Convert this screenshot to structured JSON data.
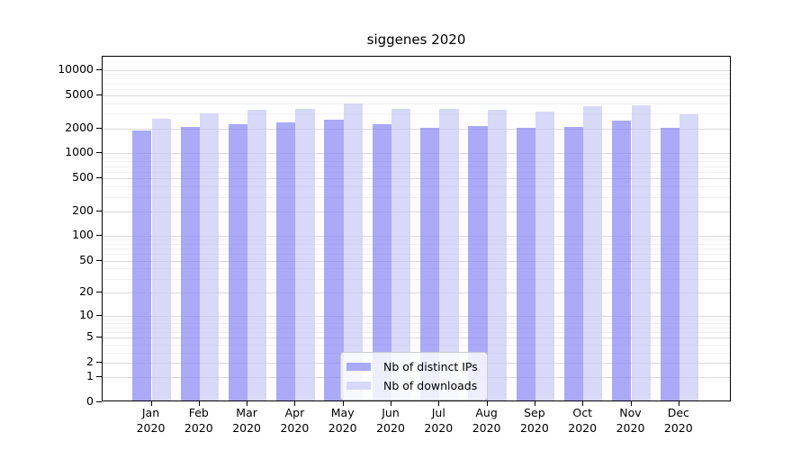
{
  "title": "siggenes 2020",
  "legend": {
    "items": [
      {
        "label": "Nb of distinct IPs",
        "color": "#aaaaf8"
      },
      {
        "label": "Nb of downloads",
        "color": "#d8d8f8"
      }
    ]
  },
  "colors": {
    "major_grid": "#dcdcdc",
    "minor_grid": "#f1f1f1",
    "axis": "#000000"
  },
  "chart_data": {
    "type": "bar",
    "title": "siggenes 2020",
    "categories": [
      "Jan 2020",
      "Feb 2020",
      "Mar 2020",
      "Apr 2020",
      "May 2020",
      "Jun 2020",
      "Jul 2020",
      "Aug 2020",
      "Sep 2020",
      "Oct 2020",
      "Nov 2020",
      "Dec 2020"
    ],
    "series": [
      {
        "name": "Nb of distinct IPs",
        "color": "#aaaaf8",
        "values": [
          1800,
          2000,
          2150,
          2250,
          2450,
          2150,
          1950,
          2050,
          1950,
          2000,
          2350,
          1950
        ]
      },
      {
        "name": "Nb of downloads",
        "color": "#d8d8f8",
        "values": [
          2500,
          2900,
          3200,
          3300,
          3800,
          3250,
          3250,
          3150,
          3000,
          3550,
          3600,
          2800
        ]
      }
    ],
    "xlabel": "",
    "ylabel": "",
    "yscale": "log1p",
    "ylim": [
      0,
      15000
    ],
    "yticks": [
      0,
      1,
      2,
      5,
      10,
      20,
      50,
      100,
      200,
      500,
      1000,
      2000,
      5000,
      10000
    ],
    "minor_yticks": [
      3,
      4,
      6,
      7,
      8,
      9,
      30,
      40,
      60,
      70,
      80,
      90,
      300,
      400,
      600,
      700,
      800,
      900,
      3000,
      4000,
      6000,
      7000,
      8000,
      9000
    ],
    "grid": true,
    "legend_position": "lower center"
  }
}
